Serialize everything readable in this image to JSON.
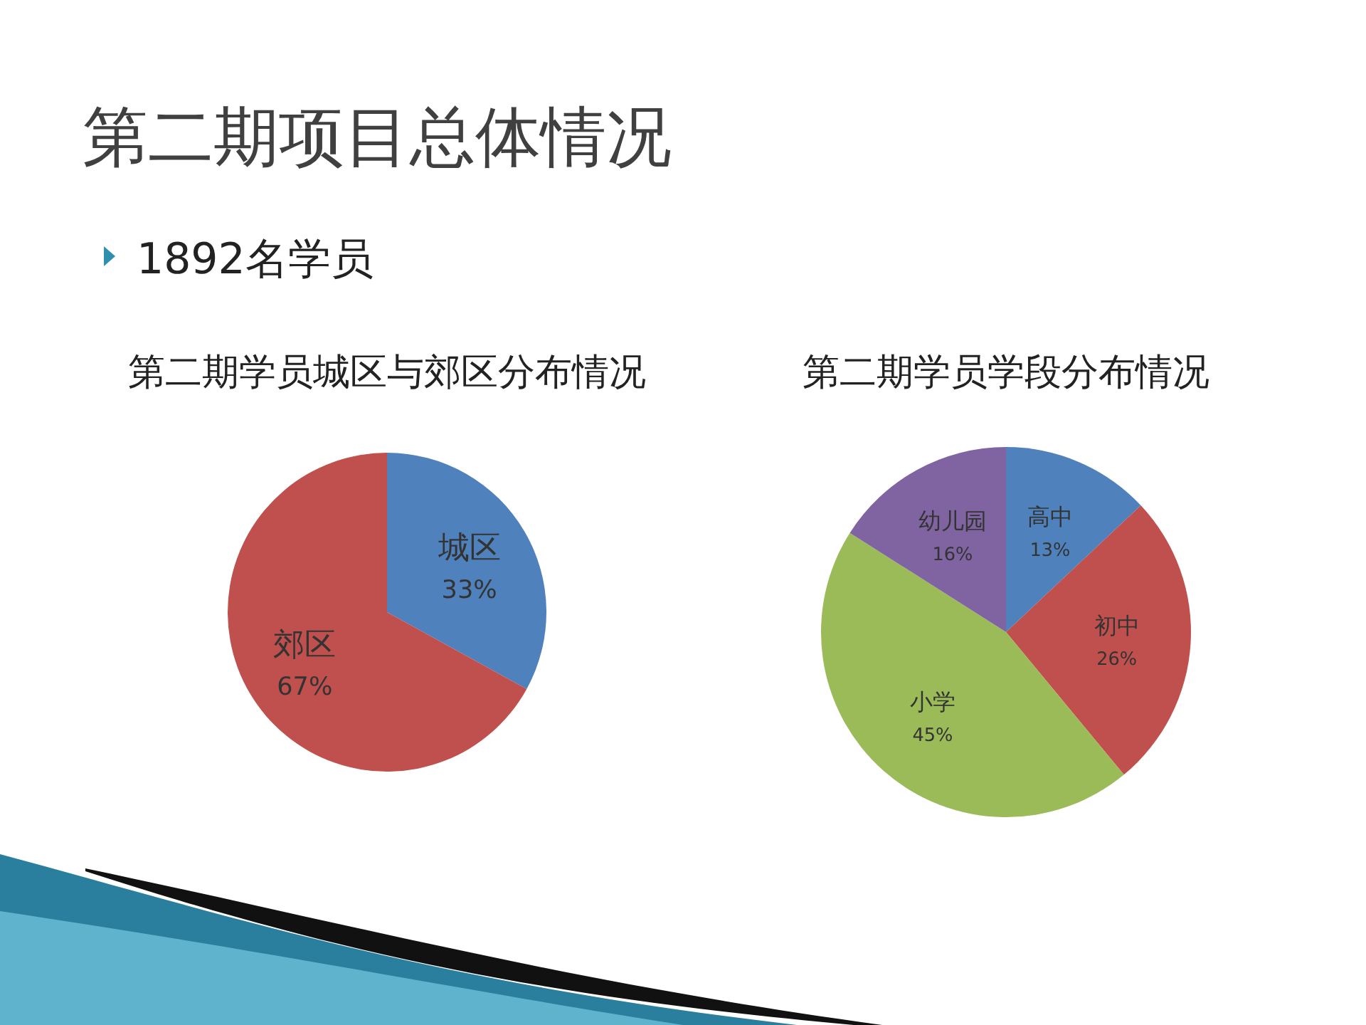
{
  "chart_data": [
    {
      "type": "other",
      "title": "第二期项目总体情况",
      "subtitle": "1892名学员"
    },
    {
      "type": "pie",
      "title": "第二期学员城区与郊区分布情况",
      "categories": [
        "城区",
        "郊区"
      ],
      "values": [
        33,
        67
      ],
      "colors": [
        "#4f81bd",
        "#c0504d"
      ],
      "value_labels": [
        "33%",
        "67%"
      ]
    },
    {
      "type": "pie",
      "title": "第二期学员学段分布情况",
      "categories": [
        "高中",
        "初中",
        "小学",
        "幼儿园"
      ],
      "values": [
        13,
        26,
        45,
        16
      ],
      "colors": [
        "#4f81bd",
        "#c0504d",
        "#9bbb59",
        "#8064a2"
      ],
      "value_labels": [
        "13%",
        "26%",
        "45%",
        "16%"
      ]
    }
  ]
}
